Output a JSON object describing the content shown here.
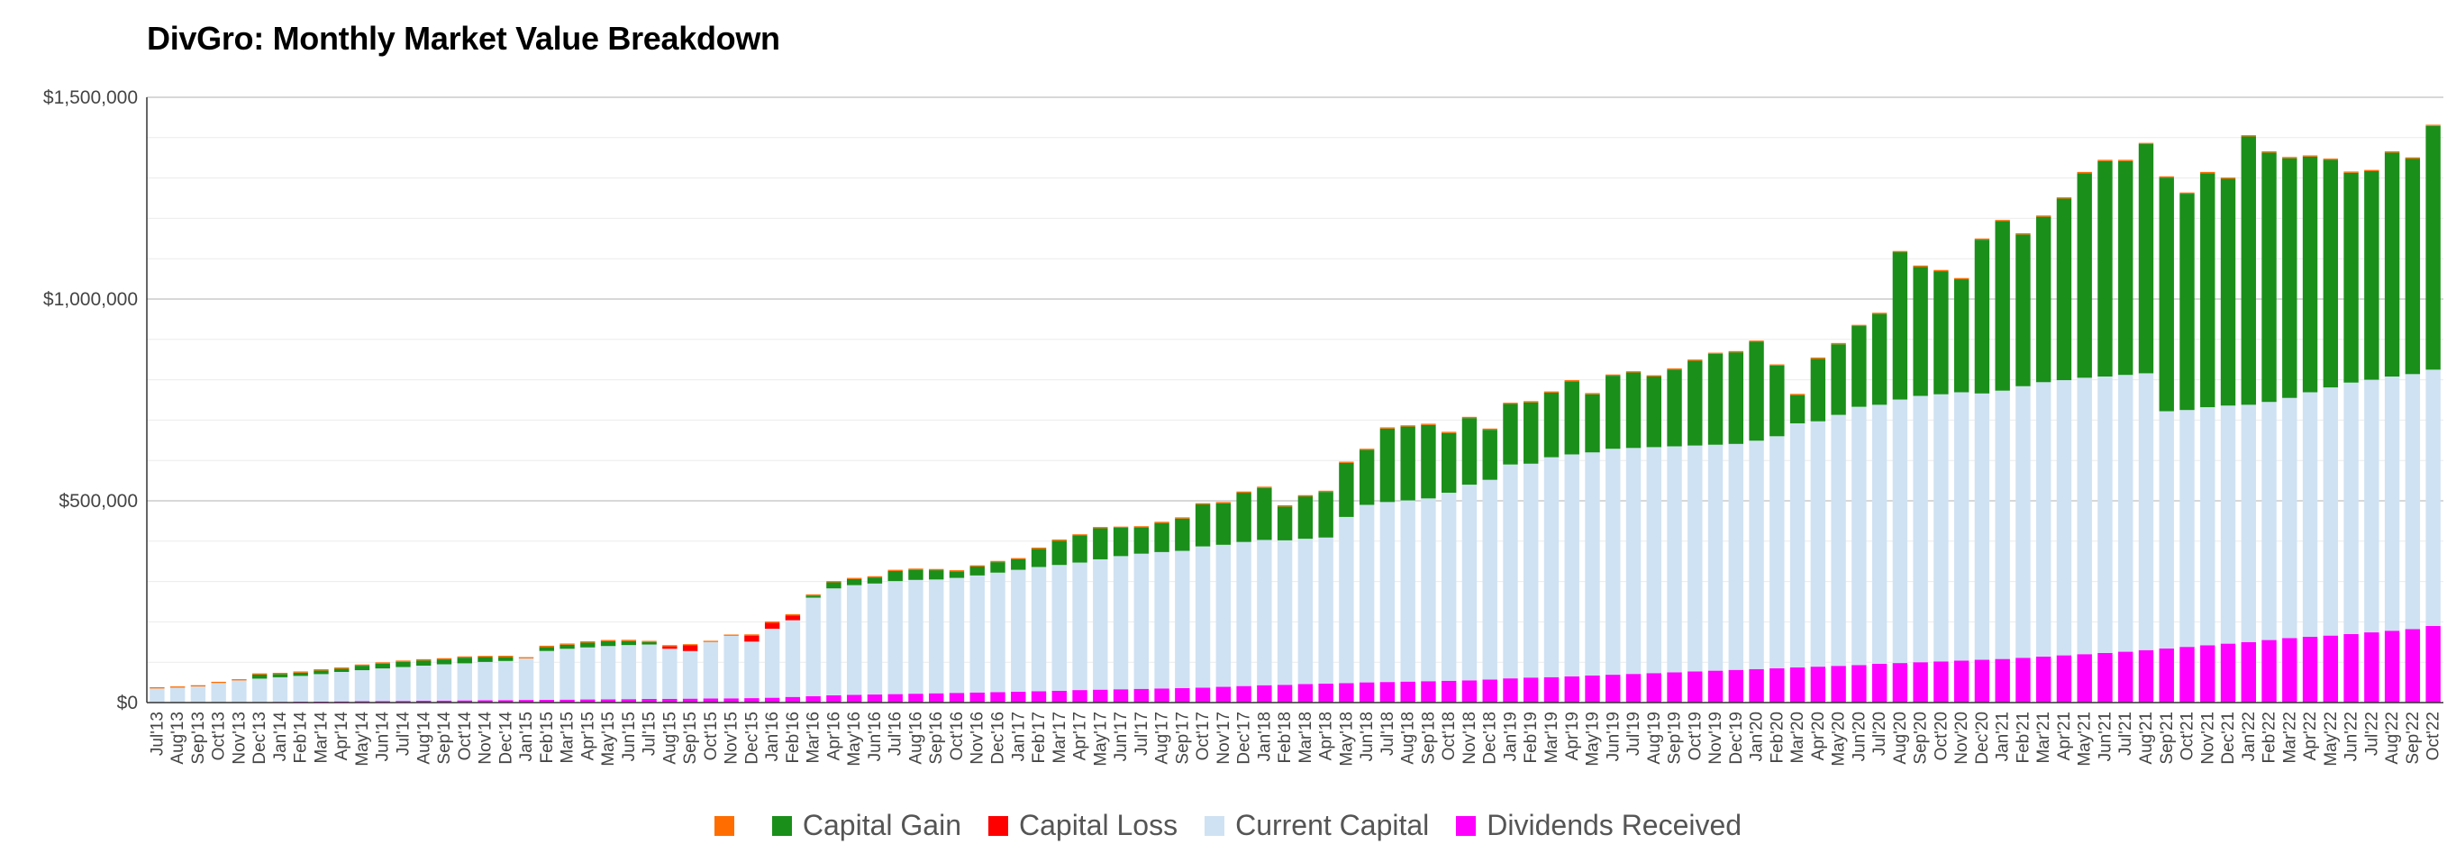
{
  "chart_data": {
    "type": "bar",
    "stacked": true,
    "title": "DivGro: Monthly Market Value Breakdown",
    "xlabel": "",
    "ylabel": "",
    "ylim": [
      0,
      1500000
    ],
    "y_ticks": [
      {
        "value": 0,
        "label": "$0"
      },
      {
        "value": 500000,
        "label": "$500,000"
      },
      {
        "value": 1000000,
        "label": "$1,000,000"
      },
      {
        "value": 1500000,
        "label": "$1,500,000"
      }
    ],
    "grid": true,
    "legend_position": "bottom",
    "categories": [
      "Jul'13",
      "Aug'13",
      "Sep'13",
      "Oct'13",
      "Nov'13",
      "Dec'13",
      "Jan'14",
      "Feb'14",
      "Mar'14",
      "Apr'14",
      "May'14",
      "Jun'14",
      "Jul'14",
      "Aug'14",
      "Sep'14",
      "Oct'14",
      "Nov'14",
      "Dec'14",
      "Jan'15",
      "Feb'15",
      "Mar'15",
      "Apr'15",
      "May'15",
      "Jun'15",
      "Jul'15",
      "Aug'15",
      "Sep'15",
      "Oct'15",
      "Nov'15",
      "Dec'15",
      "Jan'16",
      "Feb'16",
      "Mar'16",
      "Apr'16",
      "May'16",
      "Jun'16",
      "Jul'16",
      "Aug'16",
      "Sep'16",
      "Oct'16",
      "Nov'16",
      "Dec'16",
      "Jan'17",
      "Feb'17",
      "Mar'17",
      "Apr'17",
      "May'17",
      "Jun'17",
      "Jul'17",
      "Aug'17",
      "Sep'17",
      "Oct'17",
      "Nov'17",
      "Dec'17",
      "Jan'18",
      "Feb'18",
      "Mar'18",
      "Apr'18",
      "May'18",
      "Jun'18",
      "Jul'18",
      "Aug'18",
      "Sep'18",
      "Oct'18",
      "Nov'18",
      "Dec'18",
      "Jan'19",
      "Feb'19",
      "Mar'19",
      "Apr'19",
      "May'19",
      "Jun'19",
      "Jul'19",
      "Aug'19",
      "Sep'19",
      "Oct'19",
      "Nov'19",
      "Dec'19",
      "Jan'20",
      "Feb'20",
      "Mar'20",
      "Apr'20",
      "May'20",
      "Jun'20",
      "Jul'20",
      "Aug'20",
      "Sep'20",
      "Oct'20",
      "Nov'20",
      "Dec'20",
      "Jan'21",
      "Feb'21",
      "Mar'21",
      "Apr'21",
      "May'21",
      "Jun'21",
      "Jul'21",
      "Aug'21",
      "Sep'21",
      "Oct'21",
      "Nov'21",
      "Dec'21",
      "Jan'22",
      "Feb'22",
      "Mar'22",
      "Apr'22",
      "May'22",
      "Jun'22",
      "Jul'22",
      "Aug'22",
      "Sep'22",
      "Oct'22"
    ],
    "x_tick_labels": [
      "Jul'13",
      "Aug'13",
      "Sep'13",
      "Oct'13",
      "Nov'13",
      "Dec'13",
      "Jan'14",
      "Feb'14",
      "Mar'14",
      "Apr'14",
      "May'14",
      "Jun'14",
      "Jul'14",
      "Aug'14",
      "Sep'14",
      "Oct'14",
      "Nov'14",
      "Dec'14",
      "Jan'15",
      "Feb'15",
      "Mar'15",
      "Apr'15",
      "May'15",
      "Jun'15",
      "Jul'15",
      "Aug'15",
      "Sep'15",
      "Oct'15",
      "Nov'15",
      "Dec'15",
      "Jan'16",
      "Feb'16",
      "Mar'16",
      "Apr'16",
      "May'16",
      "Jun'16",
      "Jul'16",
      "Aug'16",
      "Sep'16",
      "Oct'16",
      "Nov'16",
      "Dec'16",
      "Jan'17",
      "Feb'17",
      "Mar'17",
      "Apr'17",
      "May'17",
      "Jun'17",
      "Jul'17",
      "Aug'17",
      "Sep'17",
      "Oct'17",
      "Nov'17",
      "Dec'17",
      "Jan'18",
      "Feb'18",
      "Mar'18",
      "Apr'18",
      "May'18",
      "Jun'18",
      "Jul'18",
      "Aug'18",
      "Sep'18",
      "Oct'18",
      "Nov'18",
      "Dec'18",
      "Jan'19",
      "Feb'19",
      "Mar'19",
      "Apr'19",
      "May'19",
      "Jun'19",
      "Jul'19",
      "Aug'19",
      "Sep'19",
      "Oct'19",
      "Nov'19",
      "Dec'19",
      "Jan'20",
      "Feb'20",
      "Mar'20",
      "Apr'20",
      "May'20",
      "Jun'20",
      "Jul'20",
      "Aug'20",
      "Sep'20",
      "Oct'20",
      "Nov'20",
      "Dec'20",
      "Jan'21",
      "Feb'21",
      "Mar'21",
      "Apr'21",
      "May'21",
      "Jun'21",
      "Jul'21",
      "Aug'21",
      "Sep'21",
      "Oct'21",
      "Nov'21",
      "Dec'21",
      "Jan'22",
      "Feb'22",
      "Mar'22",
      "Apr'22",
      "May'22",
      "Jun'22",
      "Jul'22",
      "Aug'22",
      "Sep'22",
      "Oct'22"
    ],
    "series": [
      {
        "name": "Dividends Received",
        "color": "#ff00ff",
        "values": [
          0,
          0,
          0,
          500,
          900,
          1300,
          1700,
          2100,
          2500,
          2900,
          3300,
          3700,
          4100,
          4500,
          4900,
          5300,
          5700,
          6100,
          6500,
          6900,
          7300,
          7700,
          8100,
          8500,
          8900,
          9300,
          9700,
          10100,
          10500,
          11000,
          12000,
          14000,
          16000,
          18000,
          19000,
          20000,
          21000,
          22000,
          23000,
          24000,
          25000,
          26000,
          27000,
          28000,
          29000,
          31000,
          32000,
          33000,
          34000,
          35000,
          36000,
          37000,
          39000,
          41000,
          43000,
          44000,
          46000,
          47000,
          48000,
          50000,
          51000,
          52000,
          53000,
          54000,
          55000,
          57000,
          60000,
          62000,
          63000,
          65000,
          67000,
          69000,
          71000,
          73000,
          75000,
          77000,
          79000,
          81000,
          83000,
          85000,
          87000,
          89000,
          91000,
          93000,
          96000,
          98000,
          100000,
          102000,
          104000,
          106000,
          108000,
          111000,
          114000,
          117000,
          120000,
          123000,
          126000,
          130000,
          134000,
          138000,
          142000,
          146000,
          150000,
          155000,
          160000,
          163000,
          166000,
          170000,
          174000,
          178000,
          182000,
          190000
        ]
      },
      {
        "name": "Current Capital",
        "color": "#cfe2f3",
        "values": [
          35000,
          37000,
          40000,
          48000,
          54000,
          58000,
          61000,
          64000,
          68000,
          73000,
          77000,
          81000,
          84000,
          87000,
          90000,
          92000,
          95000,
          97000,
          103000,
          121000,
          126000,
          129000,
          132000,
          134000,
          135000,
          124000,
          118000,
          140000,
          155000,
          140000,
          171000,
          190000,
          244000,
          265000,
          272000,
          275000,
          280000,
          282000,
          282000,
          285000,
          290000,
          296000,
          302000,
          308000,
          312000,
          316000,
          323000,
          330000,
          335000,
          338000,
          340000,
          350000,
          352000,
          357000,
          360000,
          358000,
          360000,
          362000,
          412000,
          440000,
          446000,
          449000,
          453000,
          466000,
          485000,
          495000,
          530000,
          530000,
          545000,
          550000,
          553000,
          560000,
          560000,
          560000,
          560000,
          560000,
          560000,
          560000,
          566000,
          575000,
          605000,
          608000,
          622000,
          640000,
          642000,
          653000,
          660000,
          662000,
          665000,
          660000,
          665000,
          673000,
          680000,
          682000,
          685000,
          685000,
          686000,
          686000,
          588000,
          587000,
          590000,
          590000,
          588000,
          590000,
          595000,
          606000,
          615000,
          623000,
          626000,
          630000,
          632000,
          635000
        ]
      },
      {
        "name": "Capital Loss",
        "color": "#ff0000",
        "values": [
          0,
          0,
          0,
          0,
          0,
          0,
          0,
          0,
          0,
          0,
          0,
          0,
          0,
          0,
          0,
          0,
          0,
          0,
          0,
          0,
          0,
          0,
          0,
          0,
          0,
          6000,
          14000,
          0,
          0,
          15000,
          15000,
          12000,
          0,
          0,
          0,
          0,
          0,
          0,
          0,
          0,
          0,
          0,
          0,
          0,
          0,
          0,
          0,
          0,
          0,
          0,
          0,
          0,
          0,
          0,
          0,
          0,
          0,
          0,
          0,
          0,
          0,
          0,
          0,
          0,
          0,
          0,
          0,
          0,
          0,
          0,
          0,
          0,
          0,
          0,
          0,
          0,
          0,
          0,
          0,
          0,
          0,
          0,
          0,
          0,
          0,
          0,
          0,
          0,
          0,
          0,
          0,
          0,
          0,
          0,
          0,
          0,
          0,
          0,
          0,
          0,
          0,
          0,
          0,
          0,
          0,
          0,
          0,
          0,
          0,
          0,
          0,
          0
        ]
      },
      {
        "name": "Capital Gain",
        "color": "#1a8f1a",
        "values": [
          0,
          0,
          0,
          0,
          0,
          10000,
          8000,
          8000,
          9000,
          8000,
          11000,
          12000,
          13000,
          13000,
          12000,
          14000,
          12000,
          10000,
          0,
          10000,
          10000,
          12000,
          12000,
          10000,
          6000,
          0,
          0,
          0,
          0,
          0,
          0,
          0,
          5000,
          15000,
          15000,
          15000,
          25000,
          25000,
          23000,
          16000,
          22000,
          26000,
          26000,
          45000,
          60000,
          67000,
          77000,
          70000,
          65000,
          72000,
          80000,
          104000,
          103000,
          122000,
          129000,
          84000,
          105000,
          113000,
          134000,
          136000,
          182000,
          183000,
          182000,
          148000,
          165000,
          124000,
          150000,
          152000,
          160000,
          181000,
          144000,
          181000,
          187000,
          175000,
          190000,
          210000,
          225000,
          227000,
          245000,
          175000,
          70000,
          155000,
          175000,
          200000,
          225000,
          365000,
          320000,
          305000,
          280000,
          381000,
          420000,
          376000,
          410000,
          450000,
          507000,
          534000,
          530000,
          568000,
          579000,
          536000,
          580000,
          562000,
          665000,
          618000,
          594000,
          584000,
          564000,
          520000,
          517000,
          555000,
          534000,
          604000
        ]
      },
      {
        "name": "",
        "color": "#ff6d01",
        "values": [
          3000,
          3000,
          3000,
          3000,
          3000,
          3000,
          3000,
          3000,
          3000,
          3000,
          3000,
          3000,
          3000,
          3000,
          3000,
          3000,
          3000,
          3000,
          3000,
          3000,
          3000,
          3000,
          3000,
          3000,
          3000,
          3000,
          3000,
          3000,
          3000,
          3000,
          3000,
          3000,
          3000,
          3000,
          3000,
          3000,
          3000,
          3000,
          3000,
          3000,
          3000,
          3000,
          3000,
          3000,
          3000,
          3000,
          3000,
          3000,
          3000,
          3000,
          3000,
          3000,
          3000,
          3000,
          3000,
          3000,
          3000,
          3000,
          3000,
          3000,
          3000,
          3000,
          3000,
          3000,
          3000,
          3000,
          3000,
          3000,
          3000,
          3000,
          3000,
          3000,
          3000,
          3000,
          3000,
          3000,
          3000,
          3000,
          3000,
          3000,
          3000,
          3000,
          3000,
          3000,
          3000,
          3000,
          3000,
          3000,
          3000,
          3000,
          3000,
          3000,
          3000,
          3000,
          3000,
          3000,
          3000,
          3000,
          3000,
          3000,
          3000,
          3000,
          3000,
          3000,
          3000,
          3000,
          3000,
          3000,
          3000,
          3000,
          3000,
          3000
        ]
      }
    ],
    "legend": [
      {
        "label": "",
        "color": "#ff6d01"
      },
      {
        "label": "Capital Gain",
        "color": "#1a8f1a"
      },
      {
        "label": "Capital Loss",
        "color": "#ff0000"
      },
      {
        "label": "Current Capital",
        "color": "#cfe2f3"
      },
      {
        "label": "Dividends Received",
        "color": "#ff00ff"
      }
    ]
  }
}
